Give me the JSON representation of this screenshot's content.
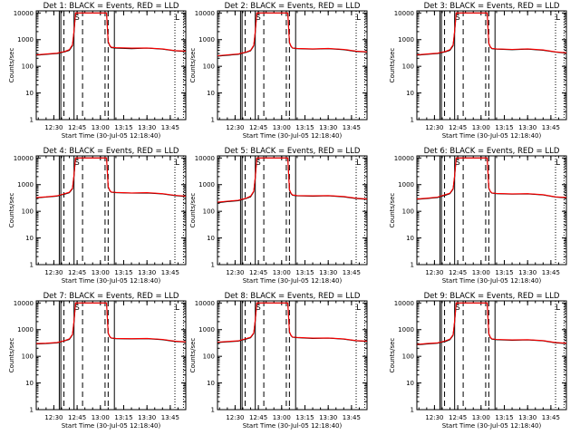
{
  "chart_data": {
    "type": "line",
    "yscale": "log",
    "ylim": [
      1,
      12000
    ],
    "xlim": [
      "12:18:40",
      "13:55:00"
    ],
    "xticks": [
      "12:30",
      "12:45",
      "13:00",
      "13:15",
      "13:30",
      "13:45"
    ],
    "yticks": [
      "1",
      "10",
      "100",
      "1000",
      "10000"
    ],
    "xlabel": "Start Time (30-Jul-05 12:18:40)",
    "ylabel": "Counts/sec",
    "colors": {
      "Events": "#000000",
      "LLD": "#ff0000"
    },
    "panels": [
      {
        "title": "Det 1: BLACK = Events, RED = LLD",
        "series": [
          {
            "name": "Events",
            "x": [
              "12:18:40",
              "12:25",
              "12:32",
              "12:34",
              "12:37",
              "12:40",
              "12:42",
              "12:43",
              "12:44",
              "13:04",
              "13:05",
              "13:06",
              "13:07",
              "13:10",
              "13:20",
              "13:30",
              "13:40",
              "13:48",
              "13:55"
            ],
            "y": [
              260,
              280,
              300,
              320,
              350,
              400,
              600,
              2000,
              10000,
              10000,
              800,
              600,
              500,
              480,
              460,
              480,
              440,
              380,
              360
            ]
          },
          {
            "name": "LLD",
            "x": [
              "12:18:40",
              "12:25",
              "12:32",
              "12:34",
              "12:37",
              "12:40",
              "12:42",
              "12:43",
              "12:44",
              "13:04",
              "13:05",
              "13:06",
              "13:07",
              "13:10",
              "13:20",
              "13:30",
              "13:40",
              "13:48",
              "13:55"
            ],
            "y": [
              270,
              290,
              310,
              330,
              360,
              420,
              650,
              2200,
              10000,
              10000,
              850,
              620,
              520,
              500,
              480,
              490,
              450,
              390,
              370
            ]
          }
        ]
      },
      {
        "title": "Det 2: BLACK = Events, RED = LLD",
        "series": [
          {
            "name": "Events",
            "x": [
              "12:18:40",
              "12:25",
              "12:32",
              "12:34",
              "12:37",
              "12:40",
              "12:42",
              "12:43",
              "12:44",
              "13:04",
              "13:05",
              "13:06",
              "13:07",
              "13:10",
              "13:20",
              "13:30",
              "13:40",
              "13:48",
              "13:55"
            ],
            "y": [
              240,
              260,
              280,
              300,
              330,
              380,
              580,
              1900,
              10000,
              10000,
              750,
              560,
              480,
              460,
              440,
              460,
              420,
              360,
              340
            ]
          },
          {
            "name": "LLD",
            "x": [
              "12:18:40",
              "12:25",
              "12:32",
              "12:34",
              "12:37",
              "12:40",
              "12:42",
              "12:43",
              "12:44",
              "13:04",
              "13:05",
              "13:06",
              "13:07",
              "13:10",
              "13:20",
              "13:30",
              "13:40",
              "13:48",
              "13:55"
            ],
            "y": [
              250,
              270,
              290,
              310,
              340,
              400,
              620,
              2100,
              10000,
              10000,
              800,
              580,
              490,
              470,
              450,
              470,
              430,
              370,
              350
            ]
          }
        ]
      },
      {
        "title": "Det 3: BLACK = Events, RED = LLD",
        "series": [
          {
            "name": "Events",
            "x": [
              "12:18:40",
              "12:25",
              "12:32",
              "12:34",
              "12:37",
              "12:40",
              "12:42",
              "12:43",
              "12:44",
              "13:04",
              "13:05",
              "13:06",
              "13:07",
              "13:10",
              "13:20",
              "13:30",
              "13:40",
              "13:48",
              "13:55"
            ],
            "y": [
              260,
              280,
              300,
              320,
              350,
              400,
              600,
              2000,
              10000,
              10000,
              700,
              520,
              460,
              440,
              420,
              440,
              400,
              340,
              310
            ]
          },
          {
            "name": "LLD",
            "x": [
              "12:18:40",
              "12:25",
              "12:32",
              "12:34",
              "12:37",
              "12:40",
              "12:42",
              "12:43",
              "12:44",
              "13:04",
              "13:05",
              "13:06",
              "13:07",
              "13:10",
              "13:20",
              "13:30",
              "13:40",
              "13:48",
              "13:55"
            ],
            "y": [
              270,
              290,
              310,
              330,
              360,
              420,
              640,
              2200,
              10000,
              10000,
              740,
              540,
              470,
              450,
              430,
              450,
              410,
              350,
              320
            ]
          }
        ]
      },
      {
        "title": "Det 4: BLACK = Events, RED = LLD",
        "series": [
          {
            "name": "Events",
            "x": [
              "12:18:40",
              "12:25",
              "12:32",
              "12:34",
              "12:37",
              "12:40",
              "12:42",
              "12:43",
              "12:44",
              "13:04",
              "13:05",
              "13:06",
              "13:07",
              "13:10",
              "13:20",
              "13:30",
              "13:40",
              "13:48",
              "13:55"
            ],
            "y": [
              320,
              340,
              370,
              400,
              440,
              500,
              700,
              2200,
              10000,
              10000,
              800,
              600,
              520,
              500,
              480,
              490,
              450,
              390,
              360
            ]
          },
          {
            "name": "LLD",
            "x": [
              "12:18:40",
              "12:25",
              "12:32",
              "12:34",
              "12:37",
              "12:40",
              "12:42",
              "12:43",
              "12:44",
              "13:04",
              "13:05",
              "13:06",
              "13:07",
              "13:10",
              "13:20",
              "13:30",
              "13:40",
              "13:48",
              "13:55"
            ],
            "y": [
              330,
              350,
              380,
              410,
              460,
              520,
              740,
              2400,
              10000,
              10000,
              840,
              620,
              530,
              510,
              490,
              500,
              460,
              400,
              370
            ]
          }
        ]
      },
      {
        "title": "Det 5: BLACK = Events, RED = LLD",
        "series": [
          {
            "name": "Events",
            "x": [
              "12:18:40",
              "12:25",
              "12:32",
              "12:34",
              "12:37",
              "12:40",
              "12:42",
              "12:43",
              "12:44",
              "13:04",
              "13:05",
              "13:06",
              "13:07",
              "13:10",
              "13:20",
              "13:30",
              "13:40",
              "13:48",
              "13:55"
            ],
            "y": [
              210,
              230,
              250,
              270,
              300,
              350,
              540,
              1800,
              10000,
              10000,
              620,
              460,
              400,
              380,
              370,
              380,
              350,
              300,
              280
            ]
          },
          {
            "name": "LLD",
            "x": [
              "12:18:40",
              "12:25",
              "12:32",
              "12:34",
              "12:37",
              "12:40",
              "12:42",
              "12:43",
              "12:44",
              "13:04",
              "13:05",
              "13:06",
              "13:07",
              "13:10",
              "13:20",
              "13:30",
              "13:40",
              "13:48",
              "13:55"
            ],
            "y": [
              220,
              240,
              260,
              280,
              310,
              370,
              570,
              1950,
              10000,
              10000,
              660,
              480,
              410,
              390,
              380,
              390,
              360,
              310,
              290
            ]
          }
        ]
      },
      {
        "title": "Det 6: BLACK = Events, RED = LLD",
        "series": [
          {
            "name": "Events",
            "x": [
              "12:18:40",
              "12:25",
              "12:32",
              "12:34",
              "12:37",
              "12:40",
              "12:42",
              "12:43",
              "12:44",
              "13:04",
              "13:05",
              "13:06",
              "13:07",
              "13:10",
              "13:20",
              "13:30",
              "13:40",
              "13:48",
              "13:55"
            ],
            "y": [
              280,
              300,
              330,
              360,
              400,
              460,
              680,
              2100,
              10000,
              10000,
              720,
              540,
              480,
              460,
              440,
              450,
              410,
              340,
              320
            ]
          },
          {
            "name": "LLD",
            "x": [
              "12:18:40",
              "12:25",
              "12:32",
              "12:34",
              "12:37",
              "12:40",
              "12:42",
              "12:43",
              "12:44",
              "13:04",
              "13:05",
              "13:06",
              "13:07",
              "13:10",
              "13:20",
              "13:30",
              "13:40",
              "13:48",
              "13:55"
            ],
            "y": [
              290,
              310,
              340,
              370,
              420,
              480,
              710,
              2300,
              10000,
              10000,
              760,
              560,
              490,
              470,
              450,
              460,
              420,
              350,
              330
            ]
          }
        ]
      },
      {
        "title": "Det 7: BLACK = Events, RED = LLD",
        "series": [
          {
            "name": "Events",
            "x": [
              "12:18:40",
              "12:25",
              "12:32",
              "12:34",
              "12:37",
              "12:40",
              "12:42",
              "12:43",
              "12:44",
              "13:04",
              "13:05",
              "13:06",
              "13:07",
              "13:10",
              "13:20",
              "13:30",
              "13:40",
              "13:48",
              "13:55"
            ],
            "y": [
              290,
              300,
              320,
              340,
              380,
              430,
              640,
              2000,
              10000,
              10000,
              720,
              540,
              480,
              460,
              450,
              460,
              420,
              360,
              340
            ]
          },
          {
            "name": "LLD",
            "x": [
              "12:18:40",
              "12:25",
              "12:32",
              "12:34",
              "12:37",
              "12:40",
              "12:42",
              "12:43",
              "12:44",
              "13:04",
              "13:05",
              "13:06",
              "13:07",
              "13:10",
              "13:20",
              "13:30",
              "13:40",
              "13:48",
              "13:55"
            ],
            "y": [
              300,
              310,
              330,
              350,
              390,
              450,
              670,
              2200,
              10000,
              10000,
              760,
              560,
              490,
              470,
              460,
              470,
              430,
              370,
              350
            ]
          }
        ]
      },
      {
        "title": "Det 8: BLACK = Events, RED = LLD",
        "series": [
          {
            "name": "Events",
            "x": [
              "12:18:40",
              "12:25",
              "12:32",
              "12:34",
              "12:37",
              "12:40",
              "12:42",
              "12:43",
              "12:44",
              "13:04",
              "13:05",
              "13:06",
              "13:07",
              "13:10",
              "13:20",
              "13:30",
              "13:40",
              "13:48",
              "13:55"
            ],
            "y": [
              330,
              350,
              370,
              400,
              440,
              500,
              720,
              2200,
              10000,
              10000,
              800,
              600,
              520,
              500,
              470,
              480,
              440,
              380,
              360
            ]
          },
          {
            "name": "LLD",
            "x": [
              "12:18:40",
              "12:25",
              "12:32",
              "12:34",
              "12:37",
              "12:40",
              "12:42",
              "12:43",
              "12:44",
              "13:04",
              "13:05",
              "13:06",
              "13:07",
              "13:10",
              "13:20",
              "13:30",
              "13:40",
              "13:48",
              "13:55"
            ],
            "y": [
              340,
              360,
              380,
              410,
              460,
              520,
              760,
              2400,
              10000,
              10000,
              840,
              620,
              530,
              510,
              480,
              490,
              450,
              390,
              370
            ]
          }
        ]
      },
      {
        "title": "Det 9: BLACK = Events, RED = LLD",
        "series": [
          {
            "name": "Events",
            "x": [
              "12:18:40",
              "12:25",
              "12:32",
              "12:34",
              "12:37",
              "12:40",
              "12:42",
              "12:43",
              "12:44",
              "13:04",
              "13:05",
              "13:06",
              "13:07",
              "13:10",
              "13:20",
              "13:30",
              "13:40",
              "13:48",
              "13:55"
            ],
            "y": [
              270,
              290,
              310,
              330,
              360,
              420,
              620,
              2000,
              10000,
              10000,
              680,
              500,
              440,
              420,
              400,
              410,
              380,
              320,
              300
            ]
          },
          {
            "name": "LLD",
            "x": [
              "12:18:40",
              "12:25",
              "12:32",
              "12:34",
              "12:37",
              "12:40",
              "12:42",
              "12:43",
              "12:44",
              "13:04",
              "13:05",
              "13:06",
              "13:07",
              "13:10",
              "13:20",
              "13:30",
              "13:40",
              "13:48",
              "13:55"
            ],
            "y": [
              280,
              300,
              320,
              340,
              380,
              440,
              650,
              2200,
              10000,
              10000,
              720,
              520,
              450,
              430,
              410,
              420,
              390,
              330,
              310
            ]
          }
        ]
      }
    ],
    "vlines_solid": [
      "12:33:30",
      "12:34:30",
      "12:43:00",
      "13:09:00"
    ],
    "vlines_dashed": [
      "12:36:30",
      "12:48:30",
      "13:03:00",
      "13:05:00"
    ],
    "vlines_dotted": [
      "13:48:00",
      "13:53:30"
    ],
    "markers": [
      {
        "x": "12:45:00",
        "label": "S"
      },
      {
        "x": "13:49:30",
        "label": "L"
      }
    ]
  }
}
